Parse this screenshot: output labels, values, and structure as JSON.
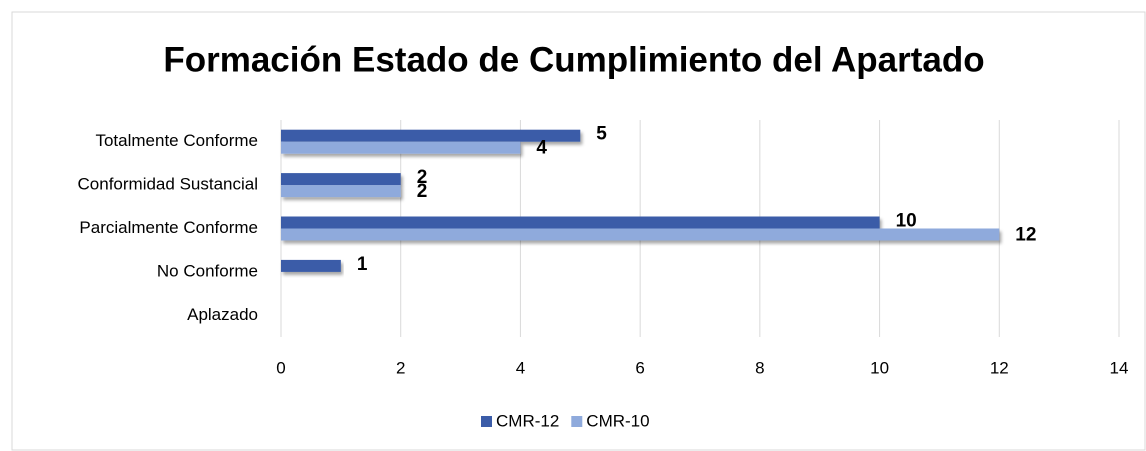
{
  "chart_data": {
    "type": "hbar",
    "title": "Formación Estado de Cumplimiento del Apartado",
    "categories": [
      "Totalmente Conforme",
      "Conformidad Sustancial",
      "Parcialmente Conforme",
      "No Conforme",
      "Aplazado"
    ],
    "series": [
      {
        "name": "CMR-12",
        "color": "#3b5ca8",
        "values": [
          5,
          2,
          10,
          1,
          0
        ]
      },
      {
        "name": "CMR-10",
        "color": "#8faadc",
        "values": [
          4,
          2,
          12,
          0,
          0
        ]
      }
    ],
    "xlim": [
      0,
      14
    ],
    "xticks": [
      0,
      2,
      4,
      6,
      8,
      10,
      12,
      14
    ],
    "grid": true,
    "legend": "bottom"
  }
}
